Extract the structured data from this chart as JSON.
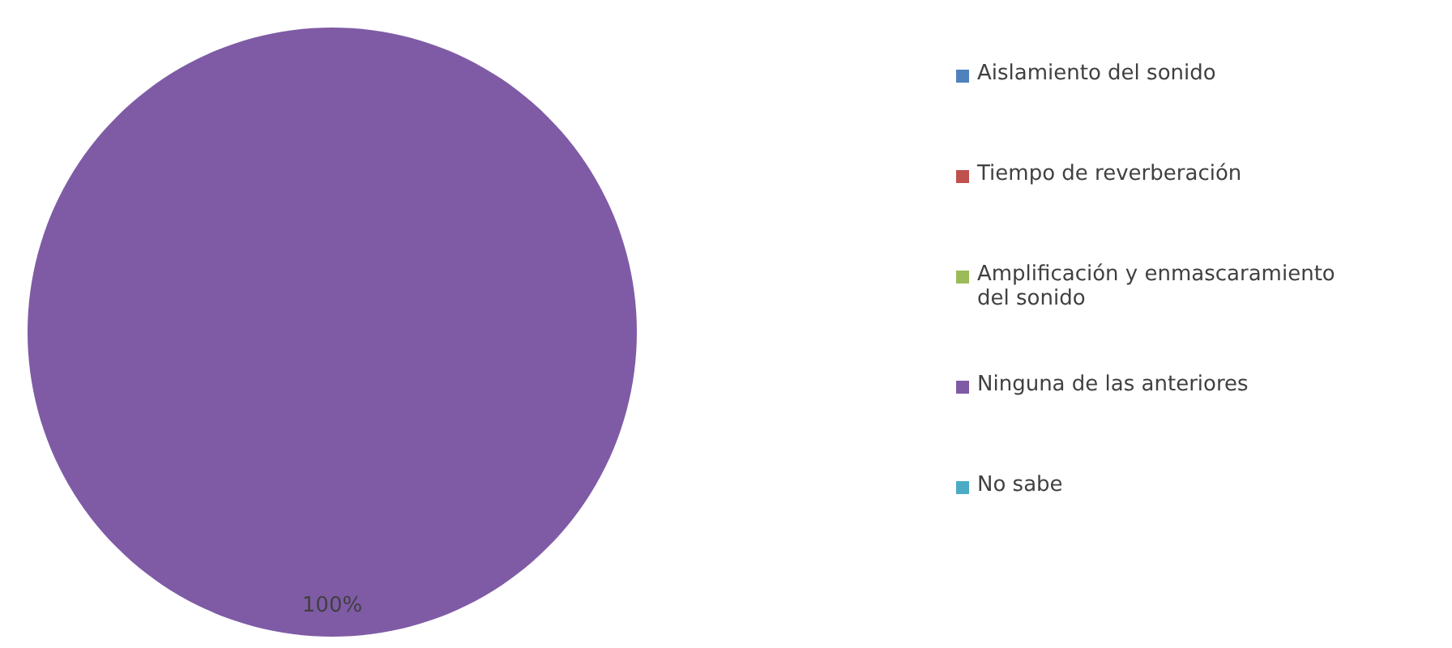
{
  "chart_data": {
    "type": "pie",
    "categories": [
      "Aislamiento del sonido",
      "Tiempo de reverberación",
      "Amplificación y enmascaramiento del sonido",
      "Ninguna de  las anteriores",
      "No sabe"
    ],
    "values": [
      0,
      0,
      0,
      100,
      0
    ],
    "colors": [
      "#4f81bd",
      "#c0504d",
      "#9bbb59",
      "#7f5ba6",
      "#4bacc6"
    ],
    "value_labels": [
      null,
      null,
      null,
      "100%",
      null
    ],
    "legend": "right"
  }
}
